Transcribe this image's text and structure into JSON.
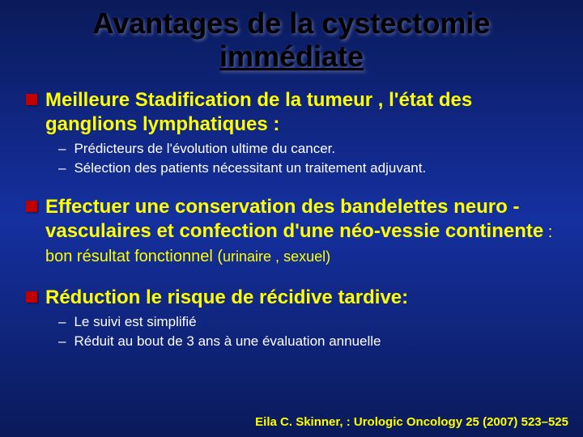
{
  "colors": {
    "background_top": "#0a1a5a",
    "background_mid": "#1530a0",
    "title_color": "#000000",
    "main_text_color": "#ffff00",
    "sub_text_color": "#ffffff",
    "bullet_color": "#c00000"
  },
  "typography": {
    "title_fontsize": 36,
    "main_fontsize": 24,
    "sub_fontsize": 17,
    "citation_fontsize": 15,
    "font_family": "Arial"
  },
  "title_line1": "Avantages de la cystectomie",
  "title_line2": "immédiate",
  "items": [
    {
      "main": "Meilleure Stadification de  la tumeur , l'état des ganglions lymphatiques :",
      "subs": [
        "Prédicteurs de l'évolution ultime du cancer.",
        "Sélection des patients nécessitant  un traitement  adjuvant."
      ]
    },
    {
      "main_bold": "Effectuer une conservation des bandelettes  neuro -vasculaires et  confection d'une néo-vessie continente",
      "main_tail": " : bon résultat  fonctionnel  (",
      "main_paren": "urinaire , sexuel)",
      "subs": []
    },
    {
      "main": "Réduction  le risque de récidive tardive:",
      "subs": [
        "Le suivi est  simplifié",
        "Réduit au bout de 3  ans à une évaluation annuelle"
      ]
    }
  ],
  "citation": "Eila C. Skinner, : Urologic Oncology 25 (2007) 523–525"
}
